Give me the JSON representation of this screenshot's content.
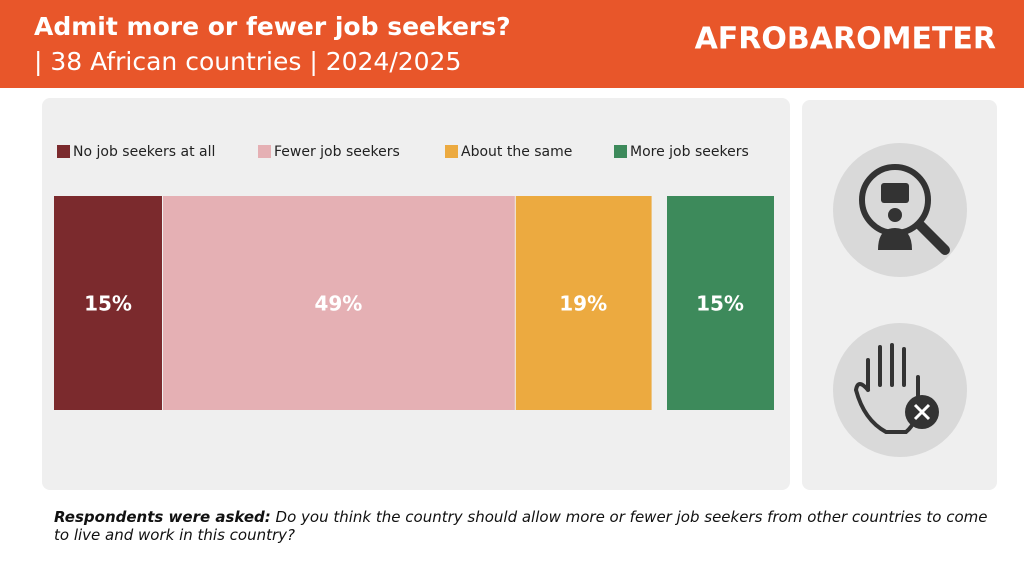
{
  "header": {
    "title": "Admit more or fewer job seekers?",
    "subtitle": "| 38 African countries | 2024/2025",
    "logo": "AFROBAROMETER"
  },
  "chart_data": {
    "type": "stacked-bar",
    "orientation": "horizontal",
    "categories": [
      null
    ],
    "xlim": [
      0,
      100
    ],
    "series": [
      {
        "name": "No job seekers at all",
        "color": "#7b2a2d",
        "values": [
          15
        ],
        "value_labels": [
          "15%"
        ]
      },
      {
        "name": "Fewer job seekers",
        "color": "#e5b0b4",
        "values": [
          49
        ],
        "value_labels": [
          "49%"
        ]
      },
      {
        "name": "About the same",
        "color": "#ecaa40",
        "values": [
          19
        ],
        "value_labels": [
          "19%"
        ]
      },
      {
        "name": "More job seekers",
        "color": "#3d8a5b",
        "values": [
          15
        ],
        "value_labels": [
          "15%"
        ]
      }
    ]
  },
  "note": {
    "lead": "Respondents were asked:",
    "text": "Do you think the country should allow more or fewer job seekers from other countries to come to live and work in this country?"
  }
}
